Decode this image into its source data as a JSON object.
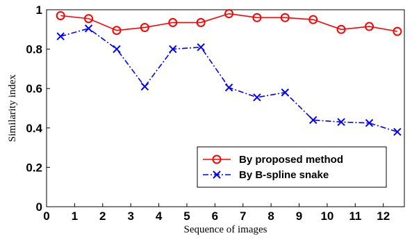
{
  "chart_data": {
    "type": "line",
    "xlabel": "Sequence of images",
    "ylabel": "Similarity index",
    "xlim": [
      0,
      12.75
    ],
    "ylim": [
      0,
      1
    ],
    "x_ticks": [
      "0",
      "1",
      "2",
      "3",
      "4",
      "5",
      "6",
      "7",
      "8",
      "9",
      "10",
      "11",
      "12"
    ],
    "y_ticks": [
      "0",
      "0.2",
      "0.4",
      "0.6",
      "0.8",
      "1"
    ],
    "grid": false,
    "legend_position": "bottom-right",
    "series": [
      {
        "name": "By proposed method",
        "color": "#ff0000",
        "marker": "circle",
        "line_style": "solid",
        "x": [
          0.5,
          1.5,
          2.5,
          3.5,
          4.5,
          5.5,
          6.5,
          7.5,
          8.5,
          9.5,
          10.5,
          11.5,
          12.5
        ],
        "values": [
          0.97,
          0.955,
          0.895,
          0.91,
          0.935,
          0.935,
          0.98,
          0.96,
          0.96,
          0.95,
          0.9,
          0.915,
          0.89
        ]
      },
      {
        "name": "By B-spline snake",
        "color": "#0000ff",
        "marker": "x",
        "line_style": "dash-dot",
        "x": [
          0.5,
          1.5,
          2.5,
          3.5,
          4.5,
          5.5,
          6.5,
          7.5,
          8.5,
          9.5,
          10.5,
          11.5,
          12.5
        ],
        "values": [
          0.865,
          0.905,
          0.8,
          0.61,
          0.8,
          0.81,
          0.605,
          0.555,
          0.58,
          0.44,
          0.43,
          0.425,
          0.38
        ]
      }
    ]
  }
}
